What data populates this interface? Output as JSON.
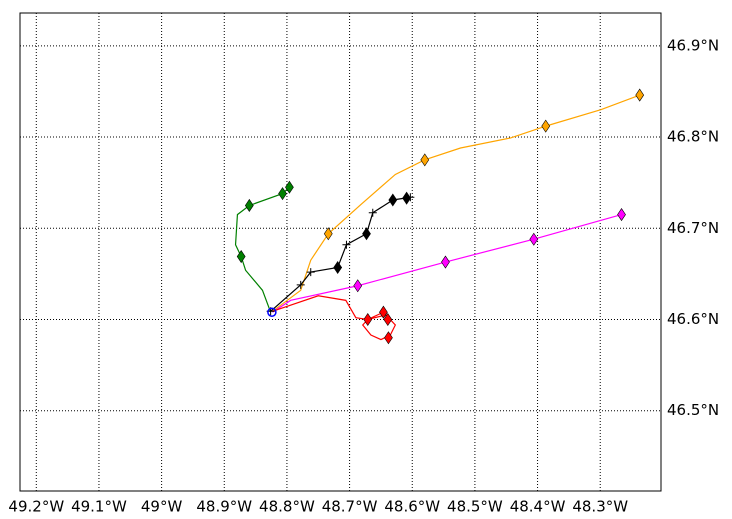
{
  "chart_data": {
    "type": "line",
    "xlim": [
      -49.226,
      -48.203
    ],
    "ylim": [
      46.412,
      46.936
    ],
    "xticks": [
      {
        "value": -49.2,
        "label": "49.2°W"
      },
      {
        "value": -49.1,
        "label": "49.1°W"
      },
      {
        "value": -49.0,
        "label": "49°W"
      },
      {
        "value": -48.9,
        "label": "48.9°W"
      },
      {
        "value": -48.8,
        "label": "48.8°W"
      },
      {
        "value": -48.7,
        "label": "48.7°W"
      },
      {
        "value": -48.6,
        "label": "48.6°W"
      },
      {
        "value": -48.5,
        "label": "48.5°W"
      },
      {
        "value": -48.4,
        "label": "48.4°W"
      },
      {
        "value": -48.3,
        "label": "48.3°W"
      }
    ],
    "yticks": [
      {
        "value": 46.5,
        "label": "46.5°N"
      },
      {
        "value": 46.6,
        "label": "46.6°N"
      },
      {
        "value": 46.7,
        "label": "46.7°N"
      },
      {
        "value": 46.8,
        "label": "46.8°N"
      },
      {
        "value": 46.9,
        "label": "46.9°N"
      }
    ],
    "grid": true,
    "series": [
      {
        "color": "#ffa500",
        "marker": "diamond",
        "x": [
          -48.823,
          -48.778,
          -48.762,
          -48.734,
          -48.682,
          -48.627,
          -48.58,
          -48.523,
          -48.443,
          -48.387,
          -48.299,
          -48.237
        ],
        "y": [
          46.609,
          46.632,
          46.665,
          46.694,
          46.726,
          46.759,
          46.775,
          46.788,
          46.799,
          46.812,
          46.83,
          46.846
        ],
        "markers": {
          "x": [
            -48.734,
            -48.58,
            -48.387,
            -48.237
          ],
          "y": [
            46.694,
            46.775,
            46.812,
            46.846
          ]
        }
      },
      {
        "color": "#ff00ff",
        "marker": "diamond",
        "x": [
          -48.823,
          -48.794,
          -48.687,
          -48.547,
          -48.406,
          -48.266
        ],
        "y": [
          46.608,
          46.621,
          46.637,
          46.663,
          46.688,
          46.715
        ],
        "markers": {
          "x": [
            -48.687,
            -48.547,
            -48.406,
            -48.266
          ],
          "y": [
            46.637,
            46.663,
            46.688,
            46.715
          ]
        }
      },
      {
        "color": "#ff0000",
        "marker": "diamond",
        "x": [
          -48.823,
          -48.75,
          -48.706,
          -48.69,
          -48.671,
          -48.642,
          -48.627,
          -48.635,
          -48.65,
          -48.666,
          -48.679,
          -48.671,
          -48.646,
          -48.638
        ],
        "y": [
          46.609,
          46.626,
          46.621,
          46.602,
          46.6,
          46.605,
          46.594,
          46.583,
          46.578,
          46.583,
          46.594,
          46.6,
          46.608,
          46.6
        ],
        "markers": {
          "x": [
            -48.671,
            -48.646,
            -48.639,
            -48.638
          ],
          "y": [
            46.6,
            46.608,
            46.6,
            46.58
          ]
        }
      },
      {
        "color": "#008000",
        "marker": "diamond",
        "x": [
          -48.826,
          -48.839,
          -48.866,
          -48.873,
          -48.882,
          -48.879,
          -48.86,
          -48.807,
          -48.796
        ],
        "y": [
          46.608,
          46.632,
          46.654,
          46.669,
          46.682,
          46.715,
          46.725,
          46.738,
          46.745
        ],
        "markers": {
          "x": [
            -48.873,
            -48.86,
            -48.807,
            -48.796
          ],
          "y": [
            46.669,
            46.725,
            46.738,
            46.745
          ]
        }
      },
      {
        "color": "#000000",
        "marker": "plus",
        "x": [
          -48.826,
          -48.778,
          -48.762,
          -48.719,
          -48.705,
          -48.673,
          -48.663,
          -48.631,
          -48.603
        ],
        "y": [
          46.609,
          46.638,
          46.652,
          46.657,
          46.682,
          46.694,
          46.717,
          46.731,
          46.734
        ],
        "markers": {
          "x": [
            -48.719,
            -48.673,
            -48.631,
            -48.609
          ],
          "y": [
            46.657,
            46.694,
            46.731,
            46.733
          ]
        }
      }
    ],
    "start": {
      "color": "#0000ff",
      "x": -48.824,
      "y": 46.608
    }
  }
}
